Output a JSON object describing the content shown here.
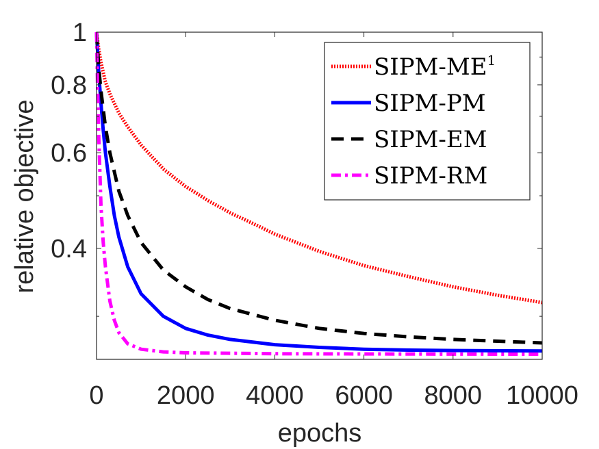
{
  "chart_data": {
    "type": "line",
    "xlabel": "epochs",
    "ylabel": "relative objective",
    "xlim": [
      0,
      10000
    ],
    "ylim": [
      0.25,
      1
    ],
    "y_scale": "log",
    "x_ticks": [
      0,
      2000,
      4000,
      6000,
      8000,
      10000
    ],
    "x_tick_labels": [
      "0",
      "2000",
      "4000",
      "6000",
      "8000",
      "10000"
    ],
    "y_ticks": [
      0.4,
      0.6,
      0.8,
      1
    ],
    "y_tick_labels": [
      "0.4",
      "0.6",
      "0.8",
      "1"
    ],
    "grid": false,
    "legend_position": "top-right",
    "series": [
      {
        "name": "SIPM-ME",
        "name_superscript": "1",
        "color": "#ff0000",
        "style": "dotted",
        "x": [
          0,
          50,
          100,
          200,
          300,
          500,
          700,
          1000,
          1500,
          2000,
          2500,
          3000,
          3500,
          4000,
          5000,
          6000,
          7000,
          8000,
          9000,
          10000
        ],
        "y": [
          1.0,
          0.93,
          0.88,
          0.81,
          0.77,
          0.71,
          0.67,
          0.62,
          0.56,
          0.52,
          0.49,
          0.465,
          0.445,
          0.425,
          0.395,
          0.372,
          0.355,
          0.34,
          0.328,
          0.318
        ]
      },
      {
        "name": "SIPM-PM",
        "color": "#0000ff",
        "style": "solid",
        "x": [
          0,
          50,
          100,
          150,
          200,
          300,
          400,
          500,
          700,
          1000,
          1500,
          2000,
          2500,
          3000,
          4000,
          5000,
          6000,
          7000,
          8000,
          10000
        ],
        "y": [
          1.0,
          0.84,
          0.74,
          0.66,
          0.6,
          0.52,
          0.46,
          0.42,
          0.37,
          0.33,
          0.3,
          0.285,
          0.277,
          0.272,
          0.266,
          0.263,
          0.261,
          0.26,
          0.2595,
          0.259
        ]
      },
      {
        "name": "SIPM-EM",
        "color": "#000000",
        "style": "dashed",
        "x": [
          0,
          50,
          100,
          200,
          300,
          500,
          700,
          1000,
          1500,
          2000,
          2500,
          3000,
          4000,
          5000,
          6000,
          7000,
          8000,
          9000,
          10000
        ],
        "y": [
          1.0,
          0.86,
          0.78,
          0.67,
          0.6,
          0.51,
          0.46,
          0.41,
          0.365,
          0.34,
          0.322,
          0.31,
          0.295,
          0.285,
          0.279,
          0.275,
          0.272,
          0.27,
          0.268
        ]
      },
      {
        "name": "SIPM-RM",
        "color": "#ff00ff",
        "style": "dash-dot",
        "x": [
          0,
          25,
          50,
          100,
          150,
          200,
          300,
          400,
          500,
          700,
          1000,
          1500,
          2000,
          3000,
          4000,
          6000,
          8000,
          10000
        ],
        "y": [
          1.0,
          0.78,
          0.64,
          0.48,
          0.41,
          0.37,
          0.32,
          0.295,
          0.28,
          0.267,
          0.261,
          0.258,
          0.257,
          0.2565,
          0.256,
          0.2558,
          0.2556,
          0.2555
        ]
      }
    ]
  }
}
